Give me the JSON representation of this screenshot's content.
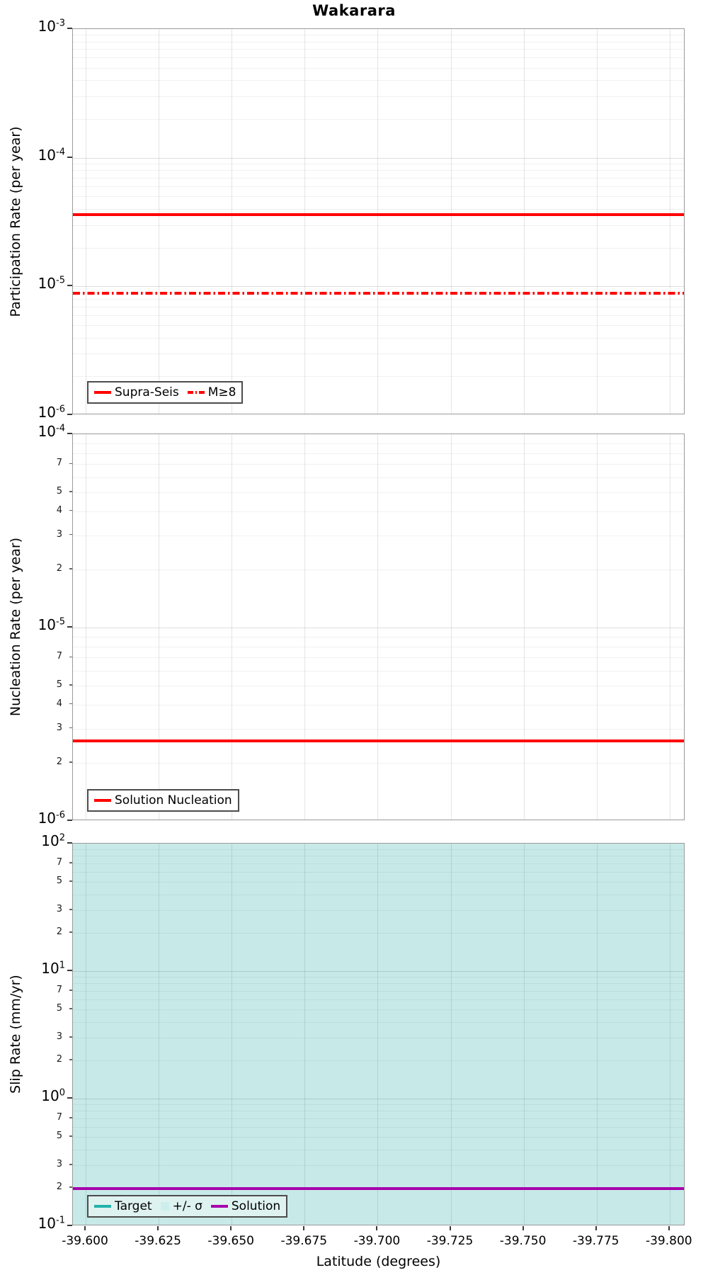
{
  "title": "Wakarara",
  "xlabel": "Latitude (degrees)",
  "x_ticks": [
    "-39.600",
    "-39.625",
    "-39.650",
    "-39.675",
    "-39.700",
    "-39.725",
    "-39.750",
    "-39.775",
    "-39.800"
  ],
  "colors": {
    "series_red": "#ff0000",
    "target_teal": "#20b2aa",
    "solution_purple": "#a800ad",
    "sigma_band_fill": "#c7eae8",
    "legend_border": "#4c4c4c",
    "panel_border": "#9b9b9b"
  },
  "chart_data": [
    {
      "type": "line",
      "name": "participation",
      "ylabel": "Participation Rate (per year)",
      "y_scale": "log",
      "ylim": [
        1e-06,
        0.001
      ],
      "y_major_ticks": [
        "10^-3",
        "10^-4",
        "10^-5",
        "10^-6"
      ],
      "y_minor_tick_labels": [],
      "x_range": [
        -39.6,
        -39.8
      ],
      "grid": true,
      "series": [
        {
          "name": "Supra-Seis",
          "color": "#ff0000",
          "style": "solid",
          "y_value": 3.6e-05
        },
        {
          "name": "M≥8",
          "color": "#ff0000",
          "style": "dashdot",
          "y_value": 8.9e-06
        }
      ],
      "legend": [
        {
          "label": "Supra-Seis",
          "swatch": "solid",
          "color": "#ff0000"
        },
        {
          "label": "M≥8",
          "swatch": "dashdot",
          "color": "#ff0000"
        }
      ],
      "legend_position": "bottom-left"
    },
    {
      "type": "line",
      "name": "nucleation",
      "ylabel": "Nucleation Rate (per year)",
      "y_scale": "log",
      "ylim": [
        1e-06,
        0.0001
      ],
      "y_major_ticks": [
        "10^-4",
        "10^-5",
        "10^-6"
      ],
      "y_minor_tick_labels": [
        7,
        5,
        4,
        3,
        2
      ],
      "x_range": [
        -39.6,
        -39.8
      ],
      "grid": true,
      "series": [
        {
          "name": "Solution Nucleation",
          "color": "#ff0000",
          "style": "solid",
          "y_value": 2.6e-06
        }
      ],
      "legend": [
        {
          "label": "Solution Nucleation",
          "swatch": "solid",
          "color": "#ff0000"
        }
      ],
      "legend_position": "bottom-left"
    },
    {
      "type": "line",
      "name": "slip-rate",
      "ylabel": "Slip Rate (mm/yr)",
      "y_scale": "log",
      "ylim": [
        0.1,
        100
      ],
      "y_major_ticks": [
        "10^2",
        "10^1",
        "10^0",
        "10^-1"
      ],
      "y_minor_tick_labels": [
        7,
        5,
        3,
        2
      ],
      "x_range": [
        -39.6,
        -39.8
      ],
      "grid": true,
      "band": {
        "name": "+/- σ",
        "color": "#c7eae8",
        "y_min": 0.1,
        "y_max": 100
      },
      "series": [
        {
          "name": "Target",
          "color": "#20b2aa",
          "style": "solid",
          "y_value": 0.196
        },
        {
          "name": "Solution",
          "color": "#a800ad",
          "style": "solid",
          "y_value": 0.196
        }
      ],
      "legend": [
        {
          "label": "Target",
          "swatch": "solid",
          "color": "#20b2aa"
        },
        {
          "label": "+/- σ",
          "swatch": "patch",
          "color": "#cdeeec"
        },
        {
          "label": "Solution",
          "swatch": "solid",
          "color": "#a800ad"
        }
      ],
      "legend_position": "bottom-left"
    }
  ]
}
